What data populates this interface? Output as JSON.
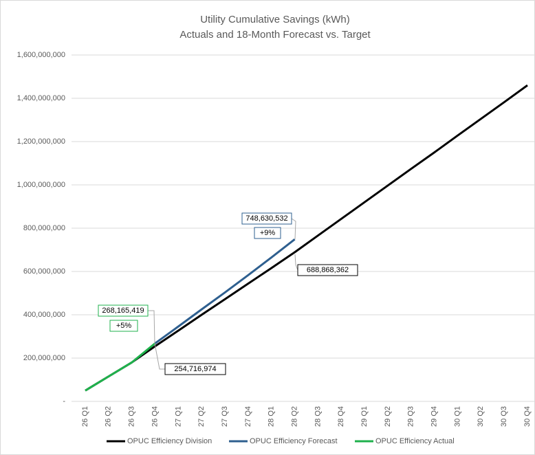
{
  "chart_data": {
    "type": "line",
    "title": "Utility Cumulative Savings (kWh)",
    "subtitle": "Actuals and 18-Month Forecast vs. Target",
    "categories": [
      "26 Q1",
      "26 Q2",
      "26 Q3",
      "26 Q4",
      "27 Q1",
      "27 Q2",
      "27 Q3",
      "27 Q4",
      "28 Q1",
      "28 Q2",
      "28 Q3",
      "28 Q4",
      "29 Q1",
      "29 Q2",
      "29 Q3",
      "29 Q4",
      "30 Q1",
      "30 Q2",
      "30 Q3",
      "30 Q4"
    ],
    "series": [
      {
        "name": "OPUC Efficiency Division",
        "color": "#000000",
        "values": [
          50000000,
          115000000,
          180000000,
          254716974,
          327000000,
          400000000,
          472000000,
          544000000,
          616000000,
          688868362,
          766000000,
          843000000,
          920000000,
          997000000,
          1074000000,
          1150000000,
          1228000000,
          1305000000,
          1382000000,
          1460000000
        ]
      },
      {
        "name": "OPUC Efficiency Forecast",
        "color": "#2e5f8f",
        "values": [
          null,
          null,
          null,
          268165419,
          346000000,
          425000000,
          503000000,
          583000000,
          665000000,
          748630532,
          null,
          null,
          null,
          null,
          null,
          null,
          null,
          null,
          null,
          null
        ]
      },
      {
        "name": "OPUC Efficiency Actual",
        "color": "#1fb14c",
        "values": [
          50000000,
          115000000,
          180000000,
          268165419,
          null,
          null,
          null,
          null,
          null,
          null,
          null,
          null,
          null,
          null,
          null,
          null,
          null,
          null,
          null,
          null
        ]
      }
    ],
    "ylim": [
      0,
      1600000000
    ],
    "yticks": [
      {
        "value": 0,
        "label": "-"
      },
      {
        "value": 200000000,
        "label": "200,000,000"
      },
      {
        "value": 400000000,
        "label": "400,000,000"
      },
      {
        "value": 600000000,
        "label": "600,000,000"
      },
      {
        "value": 800000000,
        "label": "800,000,000"
      },
      {
        "value": 1000000000,
        "label": "1,000,000,000"
      },
      {
        "value": 1200000000,
        "label": "1,200,000,000"
      },
      {
        "value": 1400000000,
        "label": "1,400,000,000"
      },
      {
        "value": 1600000000,
        "label": "1,600,000,000"
      }
    ],
    "grid": true,
    "legend": "bottom",
    "annotations": [
      {
        "text": "268,165,419",
        "color": "#1fb14c"
      },
      {
        "text": "+5%",
        "color": "#1fb14c"
      },
      {
        "text": "254,716,974",
        "color": "#000000"
      },
      {
        "text": "748,630,532",
        "color": "#2e5f8f"
      },
      {
        "text": "+9%",
        "color": "#2e5f8f"
      },
      {
        "text": "688,868,362",
        "color": "#000000"
      }
    ]
  }
}
